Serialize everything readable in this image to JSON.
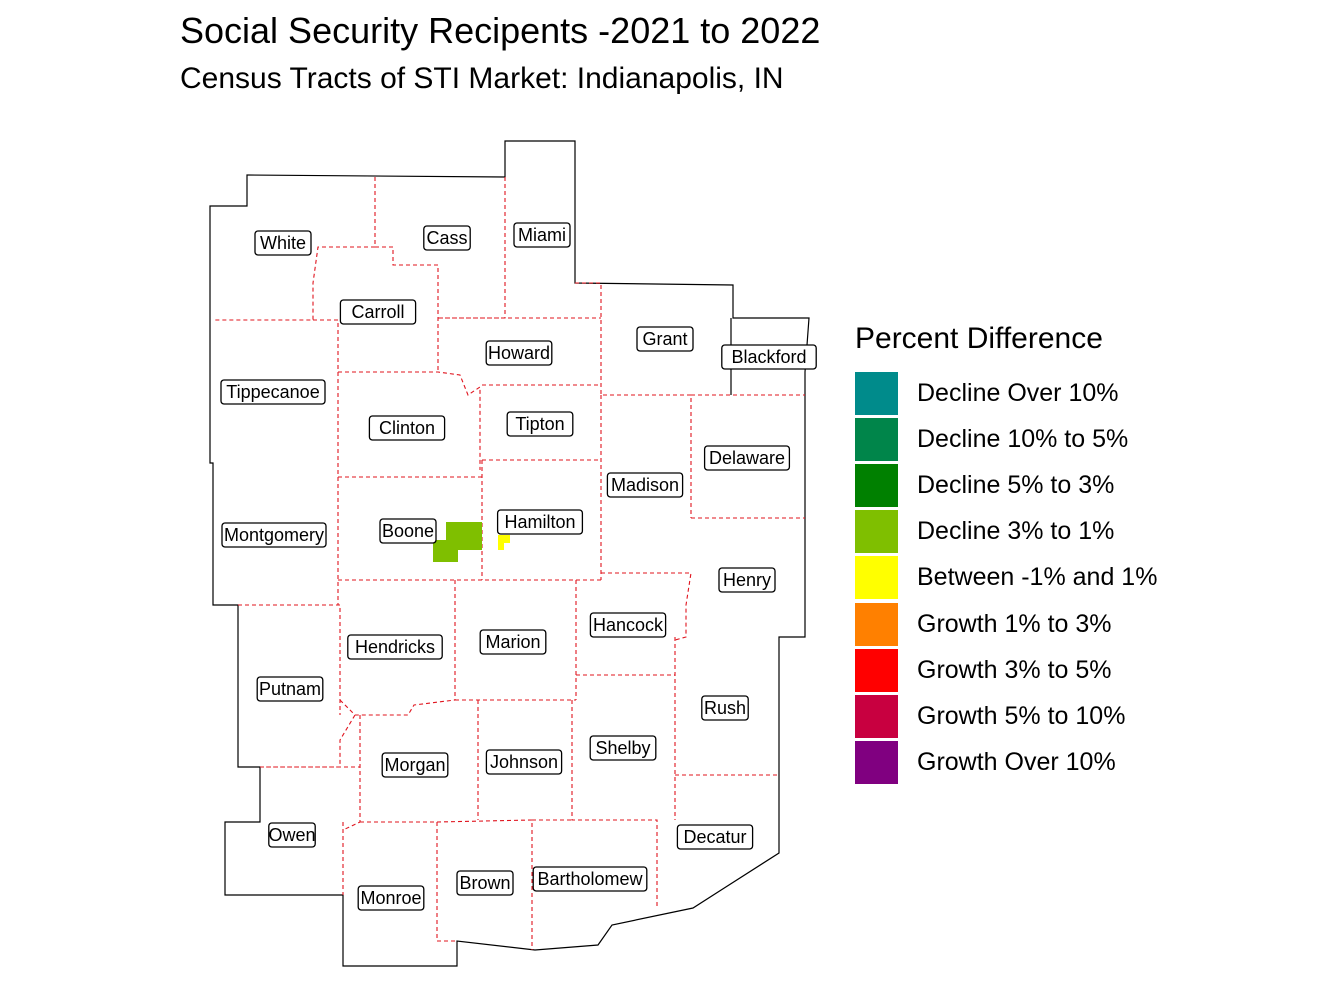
{
  "title": "Social Security Recipents -2021 to 2022",
  "subtitle": "Census Tracts of STI Market: Indianapolis, IN",
  "counties": [
    "White",
    "Cass",
    "Miami",
    "Carroll",
    "Grant",
    "Howard",
    "Blackford",
    "Tippecanoe",
    "Tipton",
    "Clinton",
    "Delaware",
    "Madison",
    "Boone",
    "Hamilton",
    "Montgomery",
    "Henry",
    "Hancock",
    "Hendricks",
    "Marion",
    "Putnam",
    "Rush",
    "Shelby",
    "Johnson",
    "Morgan",
    "Owen",
    "Decatur",
    "Bartholomew",
    "Brown",
    "Monroe"
  ],
  "legend": {
    "title": "Percent Difference",
    "items": [
      {
        "label": "Decline Over 10%",
        "color": "#008B8B"
      },
      {
        "label": "Decline 10% to 5%",
        "color": "#00854A"
      },
      {
        "label": "Decline 5% to 3%",
        "color": "#008000"
      },
      {
        "label": "Decline 3% to 1%",
        "color": "#7FBF00"
      },
      {
        "label": "Between -1% and 1%",
        "color": "#FFFF00"
      },
      {
        "label": "Growth 1% to 3%",
        "color": "#FF8000"
      },
      {
        "label": "Growth 3% to 5%",
        "color": "#FF0000"
      },
      {
        "label": "Growth 5% to 10%",
        "color": "#C80040"
      },
      {
        "label": "Growth Over 10%",
        "color": "#800080"
      }
    ]
  }
}
